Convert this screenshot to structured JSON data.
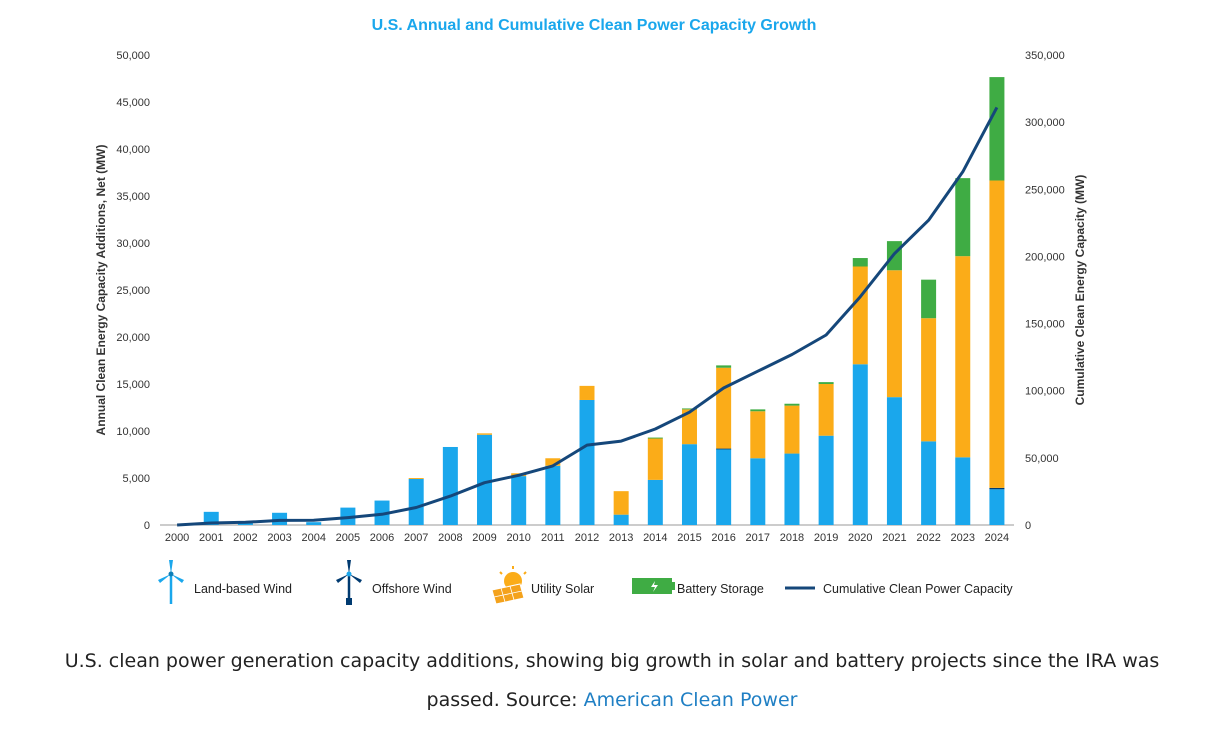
{
  "chart_data": {
    "type": "bar",
    "stacked": true,
    "title": "U.S. Annual and Cumulative Clean Power Capacity Growth",
    "categories": [
      "2000",
      "2001",
      "2002",
      "2003",
      "2004",
      "2005",
      "2006",
      "2007",
      "2008",
      "2009",
      "2010",
      "2011",
      "2012",
      "2013",
      "2014",
      "2015",
      "2016",
      "2017",
      "2018",
      "2019",
      "2020",
      "2021",
      "2022",
      "2023",
      "2024"
    ],
    "series": [
      {
        "name": "Land-based Wind",
        "color": "#1aa7ec",
        "values": [
          0,
          1400,
          400,
          1300,
          300,
          1850,
          2600,
          4900,
          8300,
          9600,
          5200,
          6300,
          13300,
          1100,
          4800,
          8600,
          8100,
          7100,
          7600,
          9500,
          17100,
          13600,
          8900,
          7200,
          3800
        ]
      },
      {
        "name": "Offshore Wind",
        "color": "#003a70",
        "values": [
          0,
          0,
          0,
          0,
          0,
          0,
          0,
          0,
          0,
          0,
          0,
          0,
          0,
          0,
          0,
          0,
          30,
          0,
          0,
          0,
          0,
          0,
          0,
          0,
          150
        ]
      },
      {
        "name": "Utility Solar",
        "color": "#fbac18",
        "values": [
          0,
          0,
          0,
          0,
          0,
          0,
          0,
          100,
          0,
          150,
          300,
          800,
          1500,
          2500,
          4400,
          3700,
          8600,
          5000,
          5100,
          5500,
          10400,
          13500,
          13100,
          21400,
          32700
        ]
      },
      {
        "name": "Battery Storage",
        "color": "#3fac44",
        "values": [
          0,
          0,
          0,
          0,
          0,
          0,
          0,
          0,
          0,
          0,
          0,
          0,
          0,
          0,
          100,
          100,
          250,
          200,
          200,
          200,
          900,
          3100,
          4100,
          8300,
          11000
        ]
      }
    ],
    "line": {
      "name": "Cumulative Clean Power Capacity",
      "color": "#15477a",
      "values": [
        0,
        1500,
        2000,
        3400,
        3600,
        5500,
        8000,
        13000,
        21500,
        31500,
        37000,
        44000,
        59500,
        62500,
        71500,
        84000,
        102000,
        114500,
        127000,
        141500,
        170000,
        202000,
        227000,
        263000,
        311000
      ]
    },
    "y_left": {
      "label": "Annual Clean Energy Capacity Additions, Net (MW)",
      "ylim": [
        0,
        50000
      ],
      "ticks": [
        0,
        5000,
        10000,
        15000,
        20000,
        25000,
        30000,
        35000,
        40000,
        45000,
        50000
      ],
      "tick_labels": [
        "0",
        "5,000",
        "10,000",
        "15,000",
        "20,000",
        "25,000",
        "30,000",
        "35,000",
        "40,000",
        "45,000",
        "50,000"
      ]
    },
    "y_right": {
      "label": "Cumulative Clean Energy Capacity (MW)",
      "ylim": [
        0,
        350000
      ],
      "ticks": [
        0,
        50000,
        100000,
        150000,
        200000,
        250000,
        300000,
        350000
      ],
      "tick_labels": [
        "0",
        "50,000",
        "100,000",
        "150,000",
        "200,000",
        "250,000",
        "300,000",
        "350,000"
      ]
    },
    "legend": {
      "placement": "bottom",
      "entries": [
        "Land-based Wind",
        "Offshore Wind",
        "Utility Solar",
        "Battery Storage",
        "Cumulative Clean Power Capacity"
      ]
    }
  },
  "colors": {
    "title": "#1aa7ec",
    "axis": "#999999",
    "link": "#1f7fc4"
  },
  "caption": {
    "text": "U.S. clean power generation capacity additions, showing big growth in solar and battery projects since the IRA was passed. Source: ",
    "link_text": "American Clean Power"
  }
}
